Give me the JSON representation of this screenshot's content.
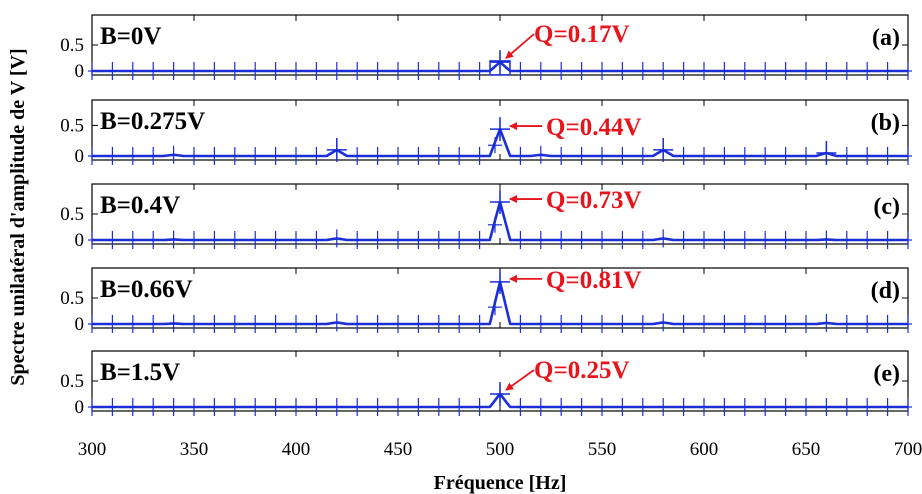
{
  "chart_data": {
    "type": "line",
    "xlabel": "Fréquence [Hz]",
    "ylabel": "Spectre unilatéral d'amplitude de V [V]",
    "xlim": [
      300,
      700
    ],
    "x_ticks": [
      300,
      350,
      400,
      450,
      500,
      550,
      600,
      650,
      700
    ],
    "marker_spacing_hz": 10,
    "grid": false,
    "colors": {
      "series": "#1a2fd6",
      "annotation": "#e8141b",
      "text": "#000000"
    },
    "panels": [
      {
        "letter": "(a)",
        "label": "B=0V",
        "q_label": "Q=0.17V",
        "ylim": [
          0,
          1.0
        ],
        "y_ticks": [
          0,
          0.5
        ],
        "peaks": [
          {
            "x": 500,
            "y": 0.17
          }
        ],
        "arrow_style": "diagonal",
        "square_marker": {
          "x": 500,
          "y": 0.04
        }
      },
      {
        "letter": "(b)",
        "label": "B=0.275V",
        "q_label": "Q=0.44V",
        "ylim": [
          0,
          0.85
        ],
        "y_ticks": [
          0,
          0.5
        ],
        "peaks": [
          {
            "x": 340,
            "y": 0.02
          },
          {
            "x": 420,
            "y": 0.1
          },
          {
            "x": 500,
            "y": 0.44
          },
          {
            "x": 520,
            "y": 0.02
          },
          {
            "x": 580,
            "y": 0.1
          },
          {
            "x": 660,
            "y": 0.05
          }
        ],
        "arrow_style": "horizontal"
      },
      {
        "letter": "(c)",
        "label": "B=0.4V",
        "q_label": "Q=0.73V",
        "ylim": [
          0,
          1.0
        ],
        "y_ticks": [
          0,
          0.5
        ],
        "peaks": [
          {
            "x": 340,
            "y": 0.01
          },
          {
            "x": 420,
            "y": 0.03
          },
          {
            "x": 500,
            "y": 0.73
          },
          {
            "x": 580,
            "y": 0.03
          },
          {
            "x": 660,
            "y": 0.01
          }
        ],
        "arrow_style": "horizontal"
      },
      {
        "letter": "(d)",
        "label": "B=0.66V",
        "q_label": "Q=0.81V",
        "ylim": [
          0,
          1.0
        ],
        "y_ticks": [
          0,
          0.5
        ],
        "peaks": [
          {
            "x": 340,
            "y": 0.01
          },
          {
            "x": 420,
            "y": 0.03
          },
          {
            "x": 500,
            "y": 0.81
          },
          {
            "x": 580,
            "y": 0.03
          },
          {
            "x": 660,
            "y": 0.02
          }
        ],
        "arrow_style": "horizontal"
      },
      {
        "letter": "(e)",
        "label": "B=1.5V",
        "q_label": "Q=0.25V",
        "ylim": [
          0,
          1.0
        ],
        "y_ticks": [
          0,
          0.5
        ],
        "peaks": [
          {
            "x": 500,
            "y": 0.25
          }
        ],
        "arrow_style": "diagonal"
      }
    ]
  }
}
